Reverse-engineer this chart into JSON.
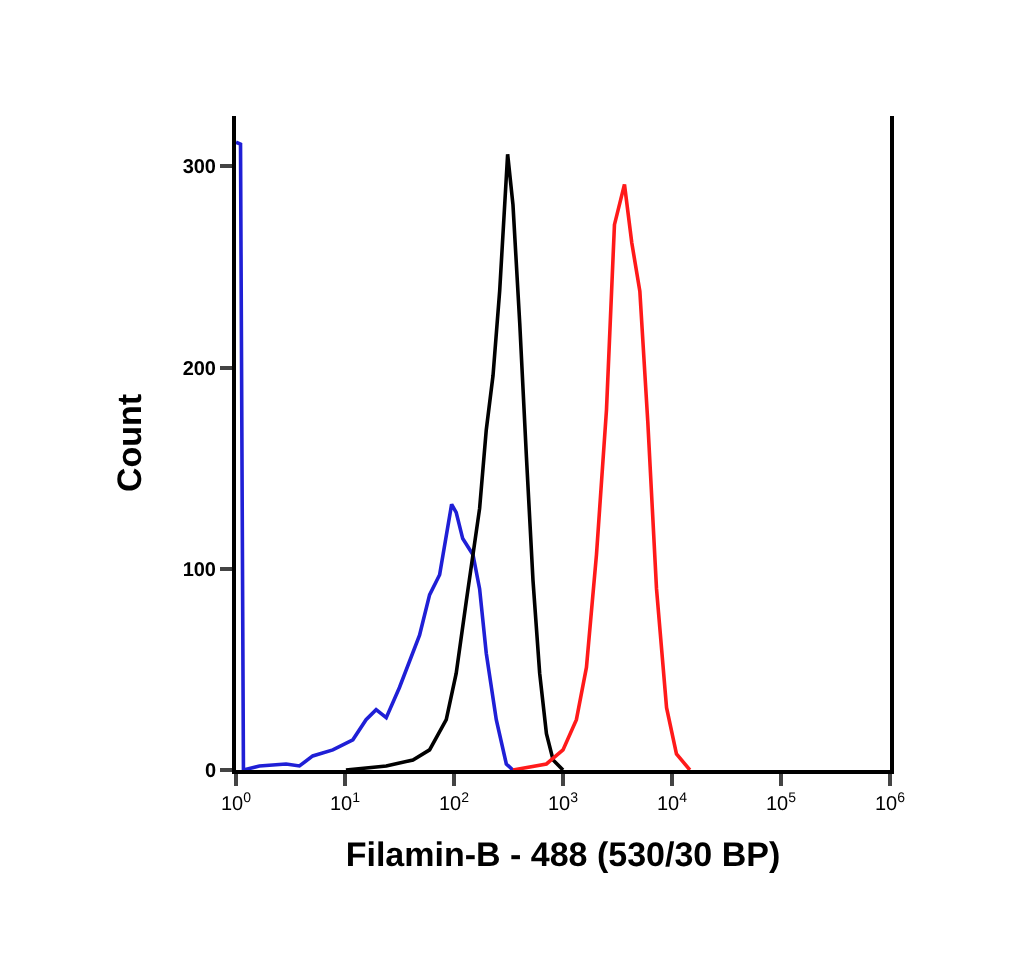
{
  "chart_data": {
    "type": "line",
    "xlabel": "Filamin-B - 488 (530/30 BP)",
    "ylabel": "Count",
    "log": "x",
    "grid": false,
    "marker": "none",
    "line_style": "solid",
    "xlim": [
      1,
      1000000
    ],
    "xticks": [
      {
        "value": 1,
        "label": "10$^{0}$"
      },
      {
        "value": 10,
        "label": "10$^{1}$"
      },
      {
        "value": 100,
        "label": "10$^{2}$"
      },
      {
        "value": 1000,
        "label": "10$^{3}$"
      },
      {
        "value": 10000,
        "label": "10$^{4}$"
      },
      {
        "value": 100000,
        "label": "10$^{5}$"
      },
      {
        "value": 1000000,
        "label": "10$^{6}$"
      }
    ],
    "ylim": [
      0,
      325
    ],
    "yticks": [
      0,
      100,
      200,
      300
    ],
    "series": [
      {
        "color": "#1f1fd6",
        "x": [
          1,
          1.1,
          1.17,
          1.64,
          2.88,
          3.82,
          5.06,
          7.73,
          11.8,
          15.6,
          19.3,
          23.9,
          31.6,
          48.3,
          59.7,
          73.8,
          95.1,
          104.7,
          120.2,
          149.3,
          171.8,
          197.7,
          244.3,
          302,
          346.7
        ],
        "values": [
          312,
          311,
          0,
          2,
          3,
          2,
          7,
          10,
          15,
          25,
          30,
          26,
          41,
          67,
          87,
          97,
          132,
          128,
          115,
          107,
          90,
          58,
          25,
          3,
          0
        ]
      },
      {
        "color": "#000000",
        "x": [
          10.2,
          23.9,
          42,
          59.7,
          84.9,
          104.7,
          129.7,
          171.8,
          197.7,
          228,
          262.4,
          310.5,
          347.5,
          400.9,
          461.3,
          530.9,
          611,
          704.7,
          810.9,
          1000
        ],
        "values": [
          0,
          2,
          5,
          10,
          25,
          48,
          84,
          130,
          169,
          196,
          238,
          306,
          281,
          222,
          156,
          94,
          48,
          18,
          5,
          0
        ]
      },
      {
        "color": "#ff1a1a",
        "x": [
          347.5,
          704.7,
          1000,
          1327,
          1641,
          2028,
          2506,
          2965,
          3664,
          4276,
          5070,
          5998,
          7211,
          8913,
          10990,
          14590
        ],
        "values": [
          0,
          3,
          10,
          25,
          51,
          107,
          179,
          271,
          291,
          262,
          238,
          173,
          90,
          31,
          8,
          0
        ]
      }
    ]
  }
}
